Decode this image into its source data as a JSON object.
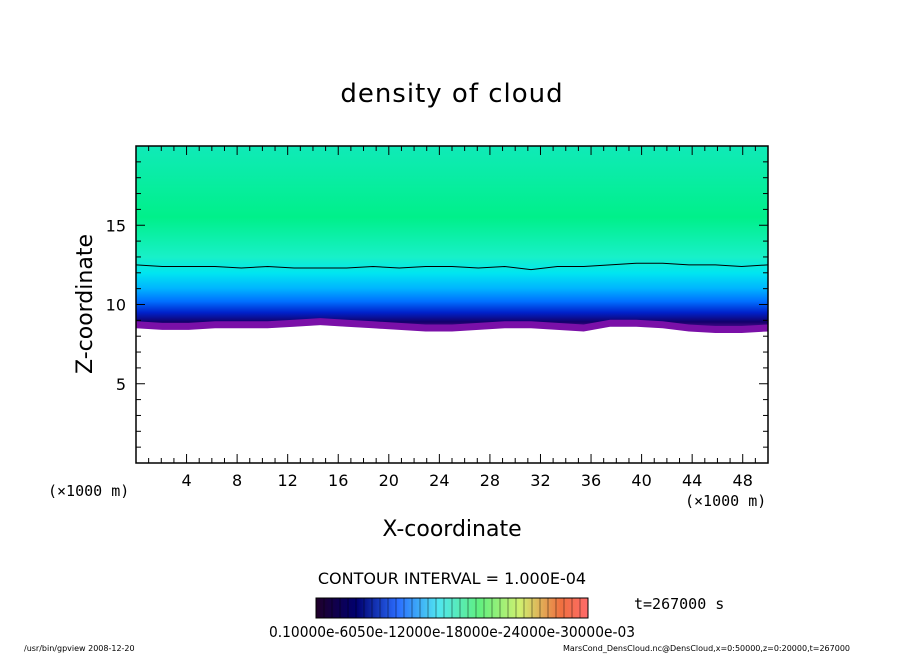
{
  "chart_data": {
    "type": "heatmap",
    "title": "density of cloud",
    "xlabel": "X-coordinate",
    "ylabel": "Z-coordinate",
    "x_unit_label": "(×1000 m)",
    "y_unit_label": "(×1000 m)",
    "xlim": [
      0,
      50
    ],
    "ylim": [
      0,
      20
    ],
    "x_ticks": [
      4,
      8,
      12,
      16,
      20,
      24,
      28,
      32,
      36,
      40,
      44,
      48
    ],
    "y_ticks": [
      5,
      10,
      15
    ],
    "contour_interval_label": "CONTOUR INTERVAL = 1.000E-04",
    "time_label": "t=267000 s",
    "colorbar_labels": "0.10000e-6050e-12000e-18000e-24000e-30000e-03",
    "cloud_base_z": [
      8.5,
      8.4,
      8.4,
      8.5,
      8.5,
      8.5,
      8.6,
      8.7,
      8.6,
      8.5,
      8.4,
      8.3,
      8.3,
      8.4,
      8.5,
      8.5,
      8.4,
      8.3,
      8.6,
      8.6,
      8.5,
      8.3,
      8.2,
      8.2,
      8.3
    ],
    "contour_line_z": [
      12.5,
      12.4,
      12.4,
      12.4,
      12.3,
      12.4,
      12.3,
      12.3,
      12.3,
      12.4,
      12.3,
      12.4,
      12.4,
      12.3,
      12.4,
      12.2,
      12.4,
      12.4,
      12.5,
      12.6,
      12.6,
      12.5,
      12.5,
      12.4,
      12.5
    ],
    "value_levels_z": [
      {
        "z": 8.3,
        "color": "#7a10a8"
      },
      {
        "z": 8.9,
        "color": "#12006a"
      },
      {
        "z": 9.5,
        "color": "#0022cc"
      },
      {
        "z": 10.2,
        "color": "#0070ff"
      },
      {
        "z": 11.0,
        "color": "#00b4ff"
      },
      {
        "z": 12.0,
        "color": "#00e6f0"
      },
      {
        "z": 13.0,
        "color": "#18f0c8"
      },
      {
        "z": 15.5,
        "color": "#00f08a"
      },
      {
        "z": 20.0,
        "color": "#10eab8"
      }
    ]
  },
  "footer": {
    "left": "/usr/bin/gpview   2008-12-20",
    "right": "MarsCond_DensCloud.nc@DensCloud,x=0:50000,z=0:20000,t=267000"
  }
}
